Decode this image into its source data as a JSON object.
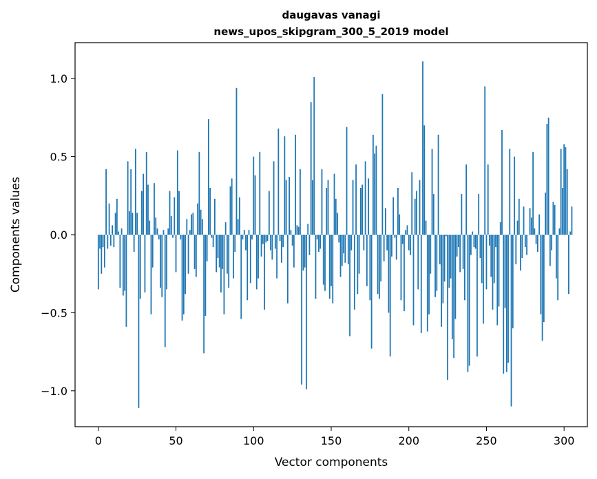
{
  "chart_data": {
    "type": "bar",
    "title": "daugavas vanagi",
    "subtitle": "news_upos_skipgram_300_5_2019 model",
    "xlabel": "Vector components",
    "ylabel": "Components values",
    "xlim": [
      -15,
      315
    ],
    "ylim": [
      -1.23,
      1.23
    ],
    "xticks": [
      0,
      50,
      100,
      150,
      200,
      250,
      300
    ],
    "xtick_labels": [
      "0",
      "50",
      "100",
      "150",
      "200",
      "250",
      "300"
    ],
    "yticks": [
      -1.0,
      -0.5,
      0.0,
      0.5,
      1.0
    ],
    "ytick_labels": [
      "−1.0",
      "−0.5",
      "0.0",
      "0.5",
      "1.0"
    ],
    "grid": false,
    "bar_color": "#1f77b4",
    "values": [
      -0.35,
      -0.09,
      -0.25,
      -0.08,
      -0.21,
      0.42,
      -0.09,
      0.2,
      -0.07,
      0.06,
      -0.08,
      0.14,
      0.23,
      0.02,
      -0.34,
      0.04,
      -0.39,
      -0.36,
      -0.59,
      0.47,
      0.15,
      0.42,
      0.14,
      -0.11,
      0.55,
      0.14,
      -1.11,
      -0.41,
      0.28,
      0.39,
      -0.37,
      0.53,
      0.32,
      0.09,
      -0.51,
      -0.21,
      0.33,
      0.11,
      0.04,
      -0.03,
      -0.34,
      -0.4,
      0.03,
      -0.72,
      -0.35,
      0.04,
      0.28,
      0.12,
      -0.02,
      0.24,
      -0.24,
      0.54,
      0.28,
      -0.03,
      -0.55,
      -0.51,
      -0.38,
      0.1,
      -0.25,
      0.03,
      0.13,
      0.14,
      -0.22,
      -0.27,
      0.2,
      0.53,
      0.16,
      0.1,
      -0.76,
      -0.52,
      -0.17,
      0.74,
      0.3,
      -0.02,
      -0.08,
      0.23,
      -0.24,
      -0.15,
      -0.21,
      -0.37,
      -0.22,
      -0.51,
      0.08,
      -0.25,
      -0.34,
      0.31,
      0.36,
      -0.28,
      -0.11,
      0.94,
      0.1,
      0.24,
      -0.54,
      -0.03,
      0.03,
      -0.1,
      -0.42,
      0.03,
      -0.31,
      -0.03,
      0.5,
      0.38,
      -0.35,
      -0.28,
      0.53,
      -0.14,
      -0.06,
      -0.48,
      -0.05,
      -0.04,
      0.28,
      -0.1,
      -0.16,
      0.47,
      -0.09,
      -0.28,
      0.68,
      -0.04,
      -0.18,
      -0.08,
      0.63,
      0.35,
      -0.44,
      0.37,
      0.03,
      -0.07,
      -0.21,
      0.64,
      0.06,
      0.05,
      0.42,
      -0.96,
      -0.23,
      -0.21,
      -0.99,
      0.07,
      -0.13,
      0.85,
      0.35,
      1.01,
      -0.41,
      -0.03,
      -0.11,
      -0.09,
      0.42,
      -0.32,
      -0.36,
      0.3,
      0.35,
      -0.41,
      -0.33,
      -0.44,
      0.39,
      0.23,
      0.14,
      -0.05,
      -0.27,
      -0.2,
      -0.12,
      -0.18,
      0.69,
      -0.19,
      -0.65,
      -0.1,
      0.35,
      -0.48,
      0.45,
      -0.38,
      -0.25,
      0.3,
      0.32,
      -0.1,
      0.47,
      -0.33,
      0.36,
      -0.42,
      -0.73,
      0.64,
      0.52,
      0.57,
      -0.38,
      -0.41,
      -0.3,
      0.9,
      -0.17,
      0.17,
      -0.1,
      -0.5,
      -0.78,
      -0.14,
      0.24,
      -0.02,
      -0.16,
      0.3,
      0.13,
      -0.42,
      -0.06,
      -0.49,
      0.03,
      0.06,
      -0.1,
      -0.13,
      0.4,
      -0.58,
      0.23,
      0.28,
      -0.35,
      0.35,
      -0.63,
      1.11,
      0.7,
      0.09,
      -0.62,
      -0.51,
      -0.25,
      0.55,
      0.26,
      -0.4,
      -0.36,
      0.64,
      -0.19,
      -0.59,
      -0.44,
      -0.3,
      -0.01,
      -0.93,
      -0.34,
      -0.28,
      -0.67,
      -0.79,
      -0.54,
      -0.14,
      -0.08,
      -0.24,
      0.26,
      -0.22,
      -0.42,
      0.45,
      -0.88,
      -0.84,
      -0.13,
      0.02,
      -0.08,
      -0.09,
      -0.78,
      0.26,
      -0.15,
      -0.31,
      -0.57,
      0.95,
      -0.35,
      0.45,
      -0.07,
      -0.27,
      -0.48,
      -0.31,
      -0.08,
      -0.58,
      -0.46,
      0.08,
      0.67,
      -0.89,
      -0.47,
      -0.88,
      -0.82,
      0.55,
      -1.1,
      -0.6,
      0.5,
      -0.19,
      0.09,
      0.23,
      -0.23,
      -0.15,
      0.18,
      -0.08,
      -0.13,
      0.0,
      0.17,
      0.11,
      0.53,
      0.04,
      -0.06,
      -0.11,
      0.13,
      -0.51,
      -0.68,
      -0.56,
      0.27,
      0.71,
      0.75,
      -0.2,
      -0.1,
      0.21,
      0.19,
      -0.28,
      -0.42,
      0.04,
      0.55,
      0.3,
      0.58,
      0.56,
      0.42,
      -0.38,
      0.02,
      0.18
    ]
  }
}
